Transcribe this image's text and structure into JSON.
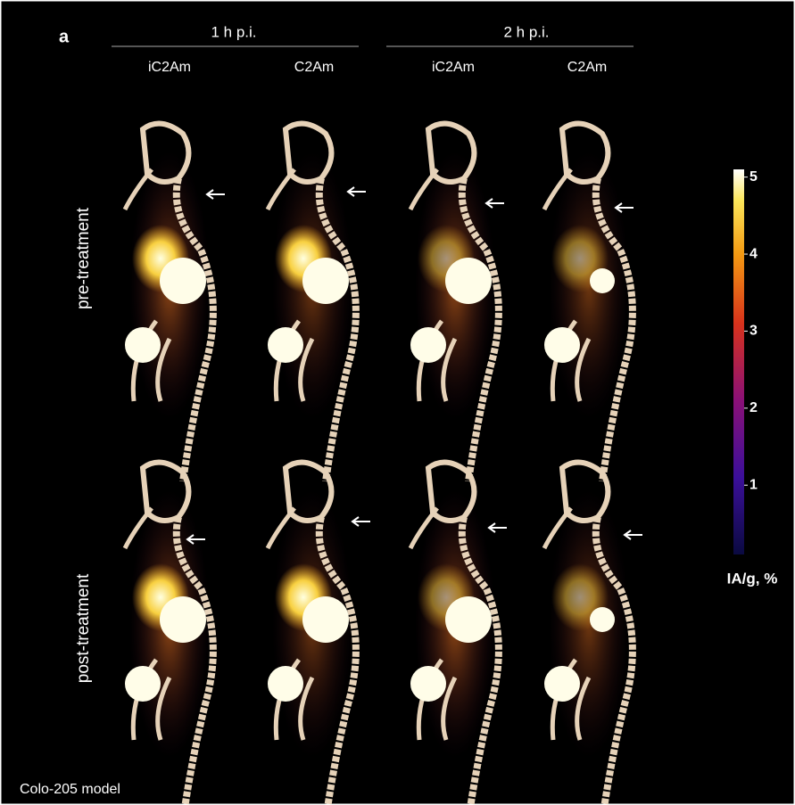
{
  "panel_letter": "a",
  "time_headers": [
    "1 h p.i.",
    "2 h p.i."
  ],
  "column_labels": [
    "iC2Am",
    "C2Am",
    "iC2Am",
    "C2Am"
  ],
  "row_labels": [
    "pre-treatment",
    "post-treatment"
  ],
  "colorbar": {
    "label": "IA/g, %",
    "lim": [
      0.1,
      5.1
    ],
    "ticks": [
      1,
      2,
      3,
      4,
      5
    ]
  },
  "footer": "Colo-205 model"
}
